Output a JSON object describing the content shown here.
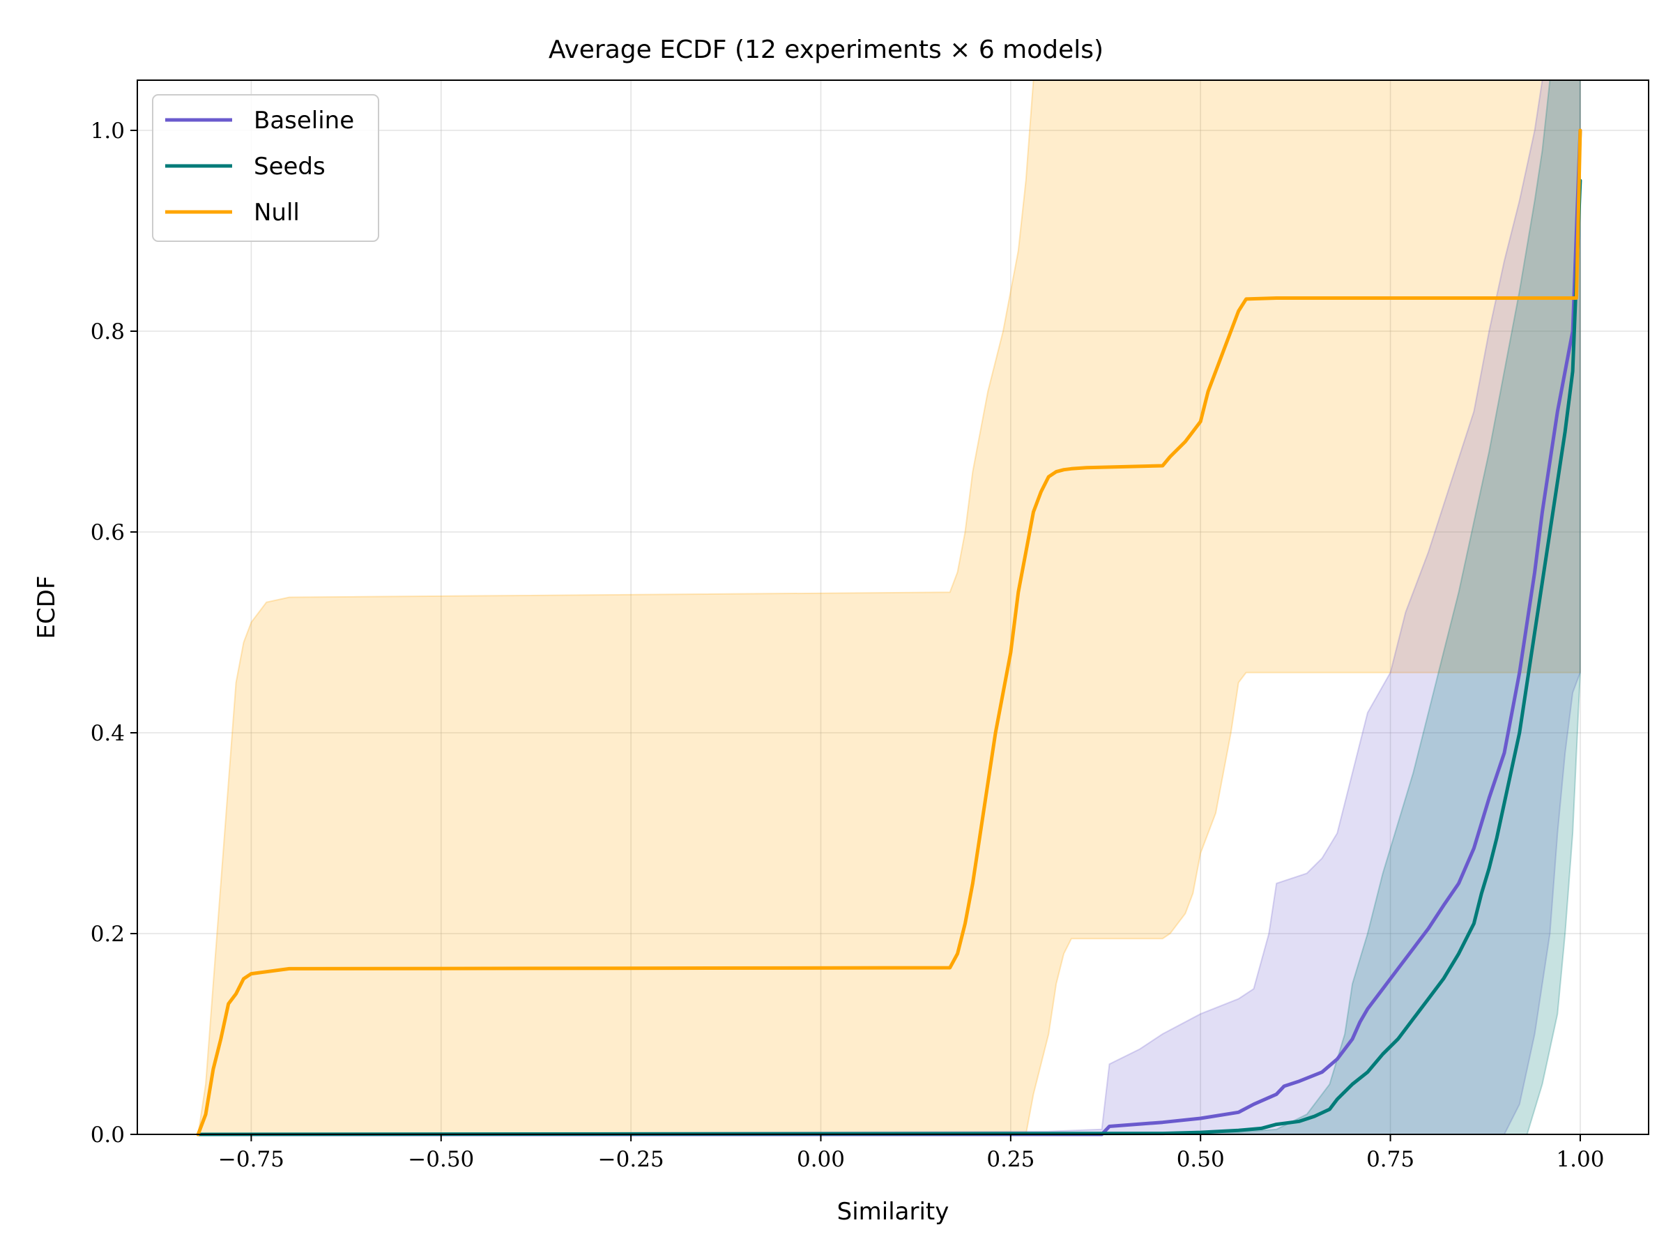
{
  "chart_data": {
    "type": "line",
    "title": "Average ECDF (12 experiments × 6 models)",
    "xlabel": "Similarity",
    "ylabel": "ECDF",
    "xlim": [
      -0.9,
      1.09
    ],
    "ylim": [
      0.0,
      1.05
    ],
    "xticks": [
      -0.75,
      -0.5,
      -0.25,
      0.0,
      0.25,
      0.5,
      0.75,
      1.0
    ],
    "xtick_labels": [
      "−0.75",
      "−0.50",
      "−0.25",
      "0.00",
      "0.25",
      "0.50",
      "0.75",
      "1.00"
    ],
    "yticks": [
      0.0,
      0.2,
      0.4,
      0.6,
      0.8,
      1.0
    ],
    "ytick_labels": [
      "0.0",
      "0.2",
      "0.4",
      "0.6",
      "0.8",
      "1.0"
    ],
    "grid": true,
    "legend_position": "top-left",
    "series": [
      {
        "name": "Baseline",
        "color": "#6a5acd",
        "band_opacity": 0.2,
        "x": [
          -0.82,
          0.37,
          0.38,
          0.45,
          0.5,
          0.55,
          0.57,
          0.6,
          0.61,
          0.63,
          0.66,
          0.68,
          0.7,
          0.71,
          0.72,
          0.74,
          0.76,
          0.78,
          0.8,
          0.82,
          0.84,
          0.86,
          0.87,
          0.88,
          0.9,
          0.91,
          0.92,
          0.93,
          0.94,
          0.95,
          0.96,
          0.97,
          0.98,
          0.99,
          1.0
        ],
        "y": [
          0.0,
          0.0,
          0.008,
          0.012,
          0.016,
          0.022,
          0.03,
          0.04,
          0.048,
          0.053,
          0.062,
          0.075,
          0.095,
          0.112,
          0.125,
          0.145,
          0.165,
          0.185,
          0.205,
          0.228,
          0.25,
          0.285,
          0.31,
          0.335,
          0.38,
          0.42,
          0.46,
          0.51,
          0.56,
          0.62,
          0.67,
          0.72,
          0.76,
          0.8,
          1.0
        ],
        "band_upper": [
          [
            -0.82,
            0.0
          ],
          [
            0.3,
            0.003
          ],
          [
            0.37,
            0.005
          ],
          [
            0.38,
            0.07
          ],
          [
            0.42,
            0.085
          ],
          [
            0.45,
            0.1
          ],
          [
            0.5,
            0.12
          ],
          [
            0.55,
            0.135
          ],
          [
            0.57,
            0.145
          ],
          [
            0.59,
            0.2
          ],
          [
            0.6,
            0.25
          ],
          [
            0.64,
            0.26
          ],
          [
            0.66,
            0.275
          ],
          [
            0.68,
            0.3
          ],
          [
            0.7,
            0.36
          ],
          [
            0.72,
            0.42
          ],
          [
            0.75,
            0.46
          ],
          [
            0.77,
            0.52
          ],
          [
            0.8,
            0.58
          ],
          [
            0.83,
            0.65
          ],
          [
            0.86,
            0.72
          ],
          [
            0.88,
            0.8
          ],
          [
            0.9,
            0.87
          ],
          [
            0.92,
            0.93
          ],
          [
            0.94,
            1.0
          ],
          [
            0.95,
            1.05
          ],
          [
            1.0,
            1.05
          ]
        ],
        "band_lower": [
          [
            -0.82,
            0.0
          ],
          [
            0.9,
            0.0
          ],
          [
            0.92,
            0.03
          ],
          [
            0.94,
            0.1
          ],
          [
            0.96,
            0.2
          ],
          [
            0.97,
            0.3
          ],
          [
            0.98,
            0.38
          ],
          [
            0.99,
            0.44
          ],
          [
            1.0,
            0.46
          ]
        ]
      },
      {
        "name": "Seeds",
        "color": "#007b78",
        "band_opacity": 0.22,
        "x": [
          -0.82,
          0.45,
          0.5,
          0.55,
          0.58,
          0.6,
          0.63,
          0.65,
          0.67,
          0.68,
          0.7,
          0.72,
          0.74,
          0.76,
          0.78,
          0.8,
          0.82,
          0.84,
          0.86,
          0.87,
          0.88,
          0.89,
          0.9,
          0.91,
          0.92,
          0.93,
          0.94,
          0.95,
          0.96,
          0.97,
          0.98,
          0.99,
          1.0
        ],
        "y": [
          0.0,
          0.001,
          0.002,
          0.004,
          0.006,
          0.01,
          0.013,
          0.018,
          0.025,
          0.035,
          0.05,
          0.062,
          0.08,
          0.095,
          0.115,
          0.135,
          0.155,
          0.18,
          0.21,
          0.24,
          0.265,
          0.295,
          0.33,
          0.365,
          0.4,
          0.45,
          0.5,
          0.55,
          0.6,
          0.65,
          0.7,
          0.76,
          0.95
        ],
        "band_upper": [
          [
            -0.82,
            0.0
          ],
          [
            0.55,
            0.002
          ],
          [
            0.6,
            0.005
          ],
          [
            0.64,
            0.02
          ],
          [
            0.67,
            0.05
          ],
          [
            0.69,
            0.1
          ],
          [
            0.7,
            0.15
          ],
          [
            0.72,
            0.2
          ],
          [
            0.74,
            0.26
          ],
          [
            0.76,
            0.31
          ],
          [
            0.78,
            0.36
          ],
          [
            0.8,
            0.42
          ],
          [
            0.82,
            0.48
          ],
          [
            0.84,
            0.54
          ],
          [
            0.86,
            0.61
          ],
          [
            0.88,
            0.68
          ],
          [
            0.9,
            0.76
          ],
          [
            0.92,
            0.84
          ],
          [
            0.94,
            0.93
          ],
          [
            0.95,
            0.98
          ],
          [
            0.96,
            1.05
          ],
          [
            1.0,
            1.05
          ]
        ],
        "band_lower": [
          [
            -0.82,
            0.0
          ],
          [
            0.93,
            0.0
          ],
          [
            0.95,
            0.05
          ],
          [
            0.97,
            0.12
          ],
          [
            0.98,
            0.2
          ],
          [
            0.99,
            0.3
          ],
          [
            1.0,
            0.46
          ]
        ]
      },
      {
        "name": "Null",
        "color": "#ffa500",
        "band_opacity": 0.2,
        "x": [
          -0.82,
          -0.81,
          -0.8,
          -0.79,
          -0.78,
          -0.77,
          -0.76,
          -0.75,
          -0.7,
          0.17,
          0.18,
          0.19,
          0.2,
          0.21,
          0.22,
          0.23,
          0.24,
          0.25,
          0.26,
          0.27,
          0.28,
          0.29,
          0.3,
          0.31,
          0.32,
          0.33,
          0.35,
          0.4,
          0.45,
          0.46,
          0.48,
          0.5,
          0.51,
          0.52,
          0.53,
          0.54,
          0.55,
          0.56,
          0.6,
          0.8,
          0.99,
          0.995,
          1.0
        ],
        "y": [
          0.0,
          0.02,
          0.065,
          0.095,
          0.13,
          0.14,
          0.155,
          0.16,
          0.165,
          0.166,
          0.18,
          0.21,
          0.25,
          0.3,
          0.35,
          0.4,
          0.44,
          0.48,
          0.54,
          0.58,
          0.62,
          0.64,
          0.655,
          0.66,
          0.662,
          0.663,
          0.664,
          0.665,
          0.666,
          0.675,
          0.69,
          0.71,
          0.74,
          0.76,
          0.78,
          0.8,
          0.82,
          0.832,
          0.833,
          0.833,
          0.833,
          0.833,
          1.0
        ],
        "band_upper": [
          [
            -0.82,
            0.0
          ],
          [
            -0.81,
            0.05
          ],
          [
            -0.8,
            0.15
          ],
          [
            -0.79,
            0.25
          ],
          [
            -0.78,
            0.35
          ],
          [
            -0.77,
            0.45
          ],
          [
            -0.76,
            0.49
          ],
          [
            -0.75,
            0.51
          ],
          [
            -0.73,
            0.53
          ],
          [
            -0.7,
            0.535
          ],
          [
            0.17,
            0.54
          ],
          [
            0.18,
            0.56
          ],
          [
            0.19,
            0.6
          ],
          [
            0.2,
            0.66
          ],
          [
            0.21,
            0.7
          ],
          [
            0.22,
            0.74
          ],
          [
            0.23,
            0.77
          ],
          [
            0.24,
            0.8
          ],
          [
            0.25,
            0.84
          ],
          [
            0.26,
            0.88
          ],
          [
            0.27,
            0.95
          ],
          [
            0.28,
            1.05
          ],
          [
            1.0,
            1.05
          ]
        ],
        "band_lower": [
          [
            -0.82,
            0.0
          ],
          [
            0.27,
            0.0
          ],
          [
            0.28,
            0.04
          ],
          [
            0.3,
            0.1
          ],
          [
            0.31,
            0.15
          ],
          [
            0.32,
            0.18
          ],
          [
            0.33,
            0.195
          ],
          [
            0.45,
            0.195
          ],
          [
            0.46,
            0.2
          ],
          [
            0.48,
            0.22
          ],
          [
            0.49,
            0.24
          ],
          [
            0.5,
            0.28
          ],
          [
            0.52,
            0.32
          ],
          [
            0.53,
            0.36
          ],
          [
            0.54,
            0.4
          ],
          [
            0.55,
            0.45
          ],
          [
            0.56,
            0.46
          ],
          [
            1.0,
            0.46
          ]
        ]
      }
    ]
  }
}
